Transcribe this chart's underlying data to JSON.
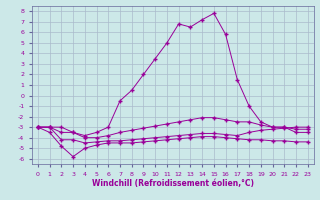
{
  "xlabel": "Windchill (Refroidissement éolien,°C)",
  "background_color": "#cce8e8",
  "grid_color": "#aabbcc",
  "line_color": "#990099",
  "spine_color": "#666699",
  "x_values": [
    0,
    1,
    2,
    3,
    4,
    5,
    6,
    7,
    8,
    9,
    10,
    11,
    12,
    13,
    14,
    15,
    16,
    17,
    18,
    19,
    20,
    21,
    22,
    23
  ],
  "series1": [
    -3.0,
    -3.5,
    -4.8,
    -5.8,
    -5.0,
    -4.7,
    -4.5,
    -4.5,
    -4.5,
    -4.4,
    -4.3,
    -4.2,
    -4.1,
    -4.0,
    -3.9,
    -3.9,
    -4.0,
    -4.1,
    -4.2,
    -4.2,
    -4.3,
    -4.3,
    -4.4,
    -4.4
  ],
  "series2": [
    -3.0,
    -3.0,
    -4.2,
    -4.2,
    -4.5,
    -4.4,
    -4.3,
    -4.3,
    -4.2,
    -4.1,
    -4.0,
    -3.9,
    -3.8,
    -3.7,
    -3.6,
    -3.6,
    -3.7,
    -3.8,
    -3.5,
    -3.3,
    -3.2,
    -3.1,
    -3.0,
    -3.0
  ],
  "series3": [
    -3.0,
    -3.0,
    -3.5,
    -3.5,
    -4.0,
    -4.0,
    -3.8,
    -3.5,
    -3.3,
    -3.1,
    -2.9,
    -2.7,
    -2.5,
    -2.3,
    -2.1,
    -2.1,
    -2.3,
    -2.5,
    -2.5,
    -2.8,
    -3.0,
    -3.0,
    -3.2,
    -3.2
  ],
  "series4": [
    -3.0,
    -3.0,
    -3.0,
    -3.5,
    -3.8,
    -3.5,
    -3.0,
    -0.5,
    0.5,
    2.0,
    3.5,
    5.0,
    6.8,
    6.5,
    7.2,
    7.8,
    5.8,
    1.5,
    -1.0,
    -2.5,
    -3.0,
    -3.0,
    -3.5,
    -3.5
  ],
  "ylim": [
    -6.5,
    8.5
  ],
  "xlim": [
    -0.5,
    23.5
  ],
  "yticks": [
    -6,
    -5,
    -4,
    -3,
    -2,
    -1,
    0,
    1,
    2,
    3,
    4,
    5,
    6,
    7,
    8
  ],
  "xticks": [
    0,
    1,
    2,
    3,
    4,
    5,
    6,
    7,
    8,
    9,
    10,
    11,
    12,
    13,
    14,
    15,
    16,
    17,
    18,
    19,
    20,
    21,
    22,
    23
  ],
  "marker": "+",
  "marker_size": 3,
  "linewidth": 0.7,
  "tick_fontsize": 4.5,
  "xlabel_fontsize": 5.5
}
